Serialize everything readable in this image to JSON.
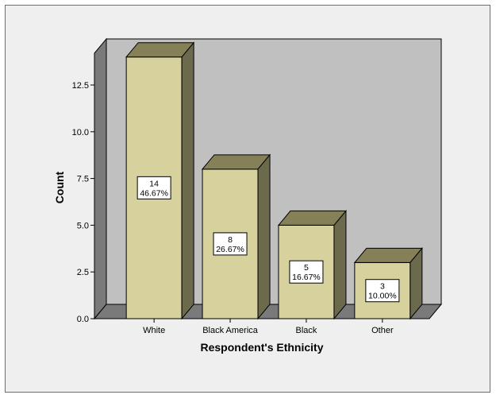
{
  "chart_data": {
    "type": "bar",
    "categories": [
      "White",
      "Black America",
      "Black",
      "Other"
    ],
    "values": [
      14,
      8,
      5,
      3
    ],
    "percent_labels": [
      "46.67%",
      "26.67%",
      "16.67%",
      "10.00%"
    ],
    "xlabel": "Respondent's Ethnicity",
    "ylabel": "Count",
    "ylim": [
      0,
      14.2
    ],
    "yticks": [
      "0.0",
      "2.5",
      "5.0",
      "7.5",
      "10.0",
      "12.5"
    ],
    "style": "3d",
    "colors": {
      "bar_front": "#d6d19d",
      "bar_top": "#858058",
      "bar_side": "#6c6a4c",
      "back_wall": "#c0c0c0",
      "left_wall": "#7a7a7a",
      "floor": "#7a7a7a",
      "frame": "#efefef"
    }
  }
}
